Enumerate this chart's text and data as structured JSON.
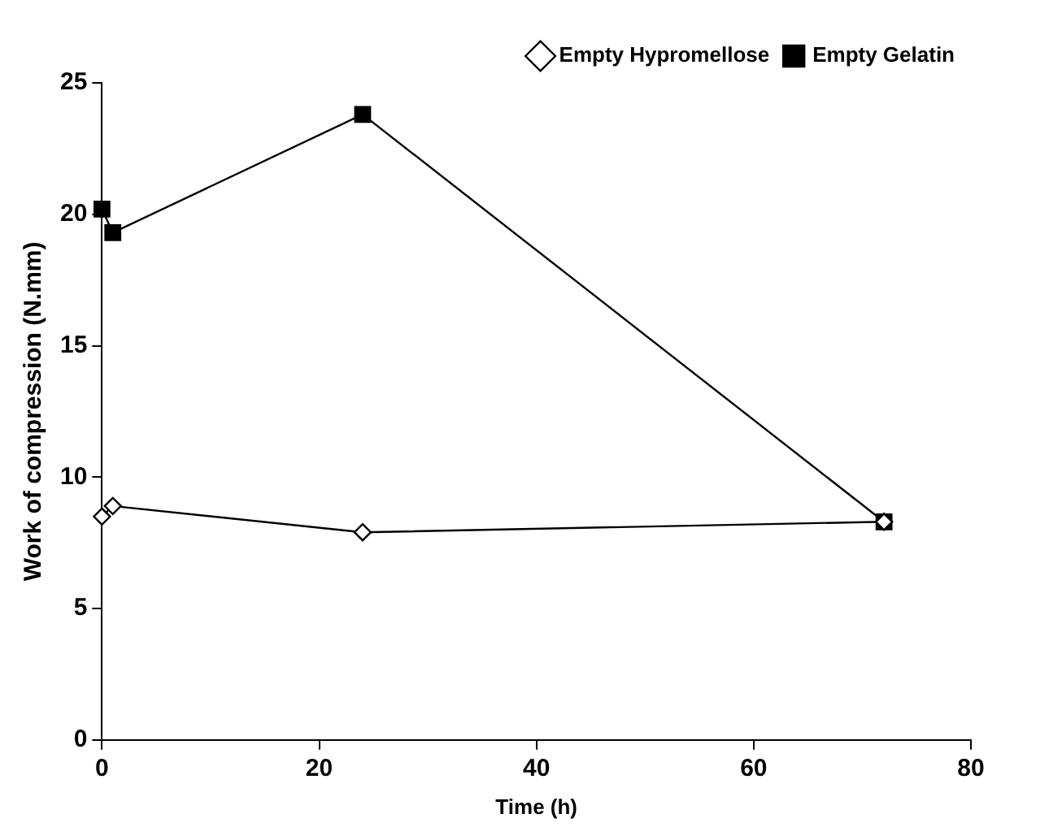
{
  "chart_data": {
    "type": "line",
    "xlabel": "Time (h)",
    "ylabel": "Work of compression (N.mm)",
    "series": [
      {
        "name": "Empty Hypromellose",
        "color": "#000000",
        "marker": "diamond",
        "x": [
          0,
          1,
          24,
          72
        ],
        "values": [
          8.5,
          8.9,
          7.9,
          8.3
        ]
      },
      {
        "name": "Empty Gelatin",
        "color": "#000000",
        "marker": "square",
        "x": [
          0,
          1,
          24,
          72
        ],
        "values": [
          20.2,
          19.3,
          23.8,
          8.3
        ]
      }
    ],
    "xlim": [
      0,
      80
    ],
    "xticks": [
      0,
      20,
      40,
      60,
      80
    ],
    "ylim": [
      0,
      25
    ],
    "yticks": [
      0,
      5,
      10,
      15,
      20,
      25
    ],
    "grid": false,
    "legend": "top right",
    "line_style": "solid"
  }
}
